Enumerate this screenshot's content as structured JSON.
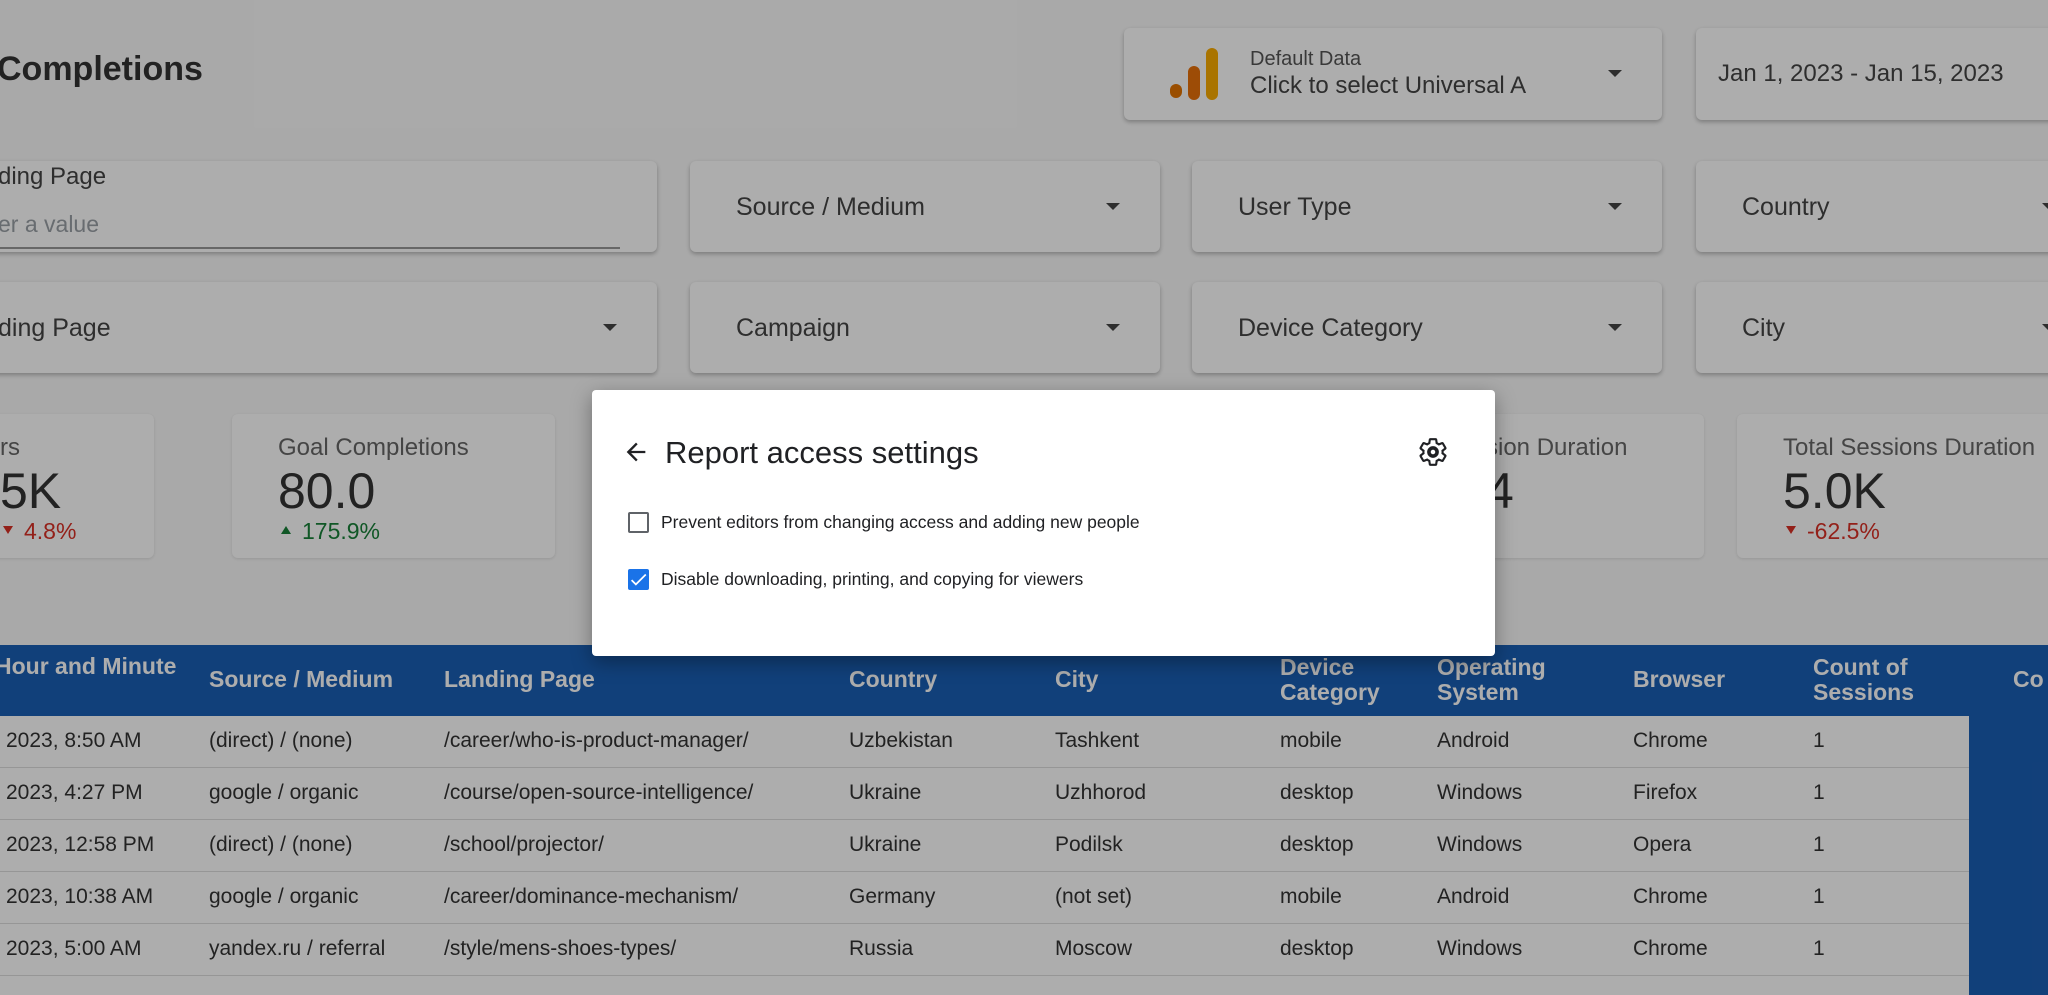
{
  "header": {
    "title": "Completions",
    "data_source": {
      "label": "Default Data",
      "value": "Click to select Universal A"
    },
    "date_range": "Jan 1, 2023 - Jan 15, 2023"
  },
  "filters": [
    {
      "label": "ding Page",
      "placeholder": "er a value"
    },
    {
      "label": "Source / Medium"
    },
    {
      "label": "User Type"
    },
    {
      "label": "Country"
    },
    {
      "label": "ding Page"
    },
    {
      "label": "Campaign"
    },
    {
      "label": "Device Category"
    },
    {
      "label": "City"
    }
  ],
  "scorecards": [
    {
      "label": "rs",
      "value": "5K",
      "delta": "4.8%",
      "trend": "down"
    },
    {
      "label": "Goal Completions",
      "value": "80.0",
      "delta": "175.9%",
      "trend": "up"
    },
    {
      "label": "sion Duration",
      "value": "4"
    },
    {
      "label": "Total Sessions Duration",
      "value": "5.0K",
      "delta": "-62.5%",
      "trend": "down"
    }
  ],
  "table": {
    "columns": [
      "Hour and Minute",
      "Source / Medium",
      "Landing Page",
      "Country",
      "City",
      "Device Category",
      "Operating System",
      "Browser",
      "Count of Sessions",
      "Co"
    ],
    "rows": [
      [
        "2023, 8:50 AM",
        "(direct) / (none)",
        "/career/who-is-product-manager/",
        "Uzbekistan",
        "Tashkent",
        "mobile",
        "Android",
        "Chrome",
        "1"
      ],
      [
        "2023, 4:27 PM",
        "google / organic",
        "/course/open-source-intelligence/",
        "Ukraine",
        "Uzhhorod",
        "desktop",
        "Windows",
        "Firefox",
        "1"
      ],
      [
        "2023, 12:58 PM",
        "(direct) / (none)",
        "/school/projector/",
        "Ukraine",
        "Podilsk",
        "desktop",
        "Windows",
        "Opera",
        "1"
      ],
      [
        "2023, 10:38 AM",
        "google / organic",
        "/career/dominance-mechanism/",
        "Germany",
        "(not set)",
        "mobile",
        "Android",
        "Chrome",
        "1"
      ],
      [
        "2023, 5:00 AM",
        "yandex.ru / referral",
        "/style/mens-shoes-types/",
        "Russia",
        "Moscow",
        "desktop",
        "Windows",
        "Chrome",
        "1"
      ]
    ]
  },
  "modal": {
    "title": "Report access settings",
    "options": [
      {
        "label": "Prevent editors from changing access and adding new people",
        "checked": false
      },
      {
        "label": "Disable downloading, printing, and copying for viewers",
        "checked": true
      }
    ]
  }
}
